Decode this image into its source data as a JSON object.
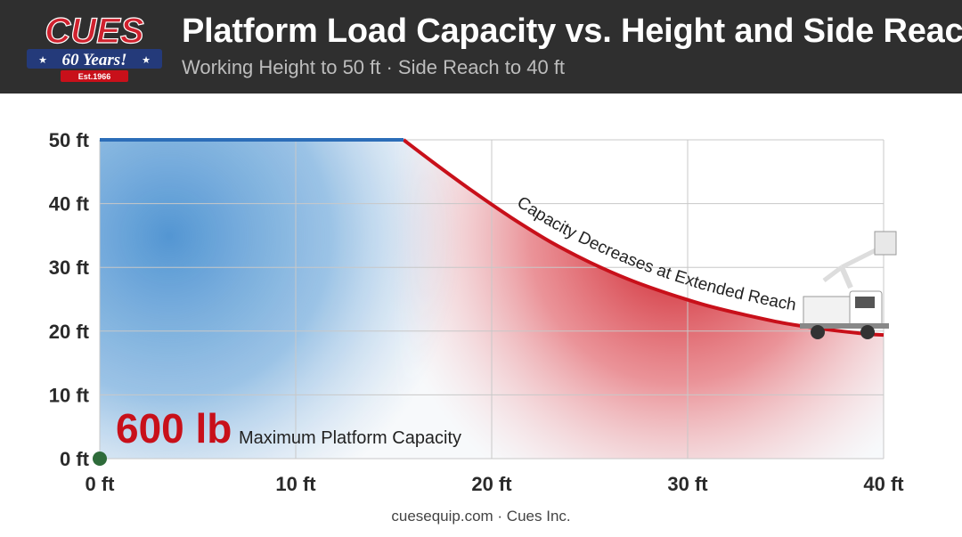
{
  "header": {
    "logo": {
      "brand": "CUES",
      "anniversary": "60 Years!",
      "established": "Est.1966"
    },
    "title": "Platform Load Capacity vs. Height and Side Reach",
    "subtitle": "Working Height to 50 ft · Side Reach to 40 ft"
  },
  "chart_data": {
    "type": "area",
    "title": "Platform Load Capacity vs. Height and Side Reach",
    "subtitle": "Working Height to 50 ft · Side Reach to 40 ft",
    "xlabel": "",
    "ylabel": "",
    "xlim": [
      0,
      40
    ],
    "ylim": [
      0,
      50
    ],
    "x_ticks": [
      0,
      10,
      20,
      30,
      40
    ],
    "y_ticks": [
      0,
      10,
      20,
      30,
      40,
      50
    ],
    "x_tick_labels": [
      "0 ft",
      "10 ft",
      "20 ft",
      "30 ft",
      "40 ft"
    ],
    "y_tick_labels": [
      "0 ft",
      "10 ft",
      "20 ft",
      "30 ft",
      "40 ft",
      "50 ft"
    ],
    "grid": true,
    "capacity_boundary": {
      "x": [
        0,
        15.5,
        17,
        19,
        21,
        23,
        25,
        27,
        29,
        31,
        33,
        35,
        37,
        39,
        40
      ],
      "y": [
        50,
        50,
        46.5,
        42,
        37.8,
        34,
        30.8,
        28.1,
        25.9,
        24,
        22.5,
        21.2,
        20.3,
        19.6,
        19.4
      ]
    },
    "annotations": {
      "max_capacity_value": "600 lb",
      "max_capacity_label": "Maximum Platform Capacity",
      "curve_label": "Capacity Decreases at Extended Reach"
    },
    "colors": {
      "full_capacity": "#4a90d0",
      "boundary_line": "#2c6db8",
      "reduced_capacity": "#c8101a",
      "grid": "#c8c8c8",
      "origin_marker": "#2e6b3a"
    }
  },
  "footer": {
    "text": "cuesequip.com · Cues Inc."
  }
}
